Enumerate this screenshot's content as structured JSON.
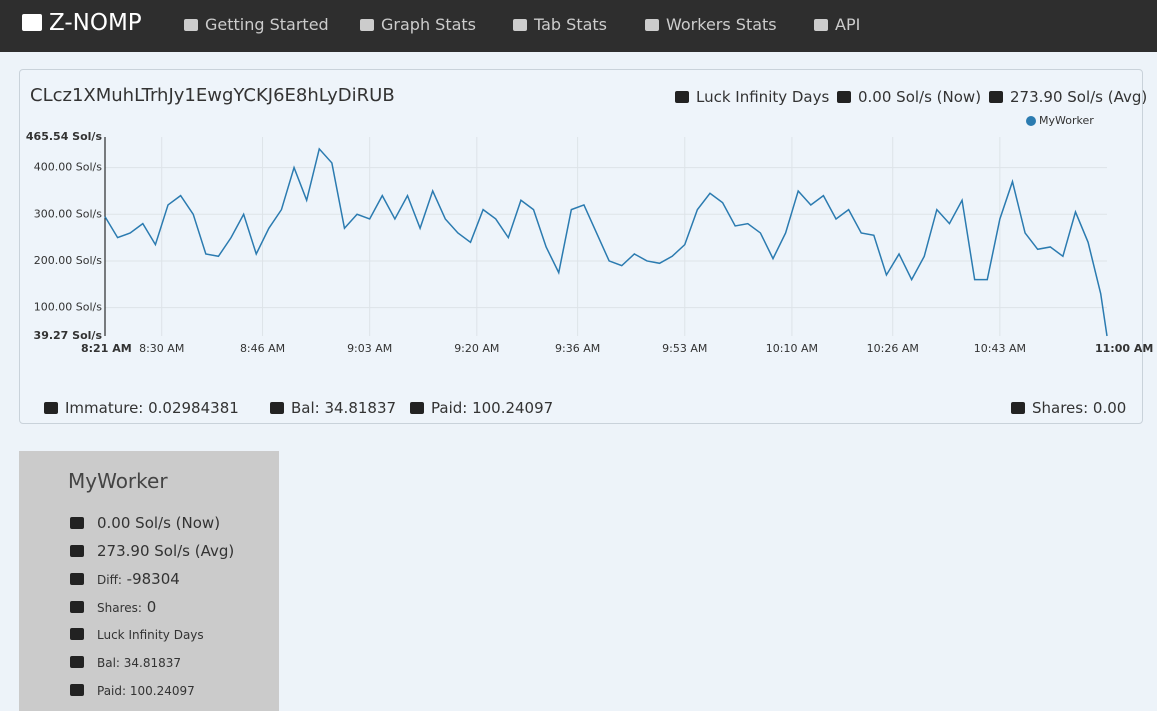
{
  "nav": {
    "brand": "Z-NOMP",
    "links": [
      "Getting Started",
      "Graph Stats",
      "Tab Stats",
      "Workers Stats",
      "API"
    ]
  },
  "header": {
    "address": "CLcz1XMuhLTrhJy1EwgYCKJ6E8hLyDiRUB",
    "luck": "Luck Infinity Days",
    "now": "0.00 Sol/s (Now)",
    "avg": "273.90 Sol/s (Avg)"
  },
  "chart_data": {
    "type": "line",
    "x": [
      501,
      503,
      505,
      507,
      509,
      511,
      513,
      515,
      517,
      519,
      521,
      523,
      525,
      527,
      529,
      531,
      533,
      535,
      537,
      539,
      541,
      543,
      545,
      547,
      549,
      551,
      553,
      555,
      557,
      559,
      561,
      563,
      565,
      567,
      569,
      571,
      573,
      575,
      577,
      579,
      581,
      583,
      585,
      587,
      589,
      591,
      593,
      595,
      597,
      599,
      601,
      603,
      605,
      607,
      609,
      611,
      613,
      615,
      617,
      619,
      621,
      623,
      625,
      627,
      629,
      631,
      633,
      635,
      637,
      639,
      641,
      643,
      645,
      647,
      649,
      651,
      653,
      655,
      657,
      659,
      660
    ],
    "series": [
      {
        "name": "MyWorker",
        "color": "#2b7bb0",
        "values": [
          295,
          250,
          260,
          280,
          235,
          320,
          340,
          300,
          215,
          210,
          250,
          300,
          215,
          270,
          310,
          400,
          330,
          440,
          410,
          270,
          300,
          290,
          340,
          290,
          340,
          270,
          350,
          290,
          260,
          240,
          310,
          290,
          250,
          330,
          310,
          230,
          175,
          310,
          320,
          260,
          200,
          190,
          215,
          200,
          195,
          210,
          235,
          310,
          345,
          325,
          275,
          280,
          260,
          205,
          260,
          350,
          320,
          340,
          290,
          310,
          260,
          255,
          170,
          215,
          160,
          210,
          310,
          280,
          330,
          160,
          160,
          290,
          370,
          260,
          225,
          230,
          210,
          305,
          240,
          130,
          39.27
        ]
      }
    ],
    "xlim": [
      501,
      660
    ],
    "xticks": [
      {
        "value": 501,
        "label": "8:21 AM"
      },
      {
        "value": 510,
        "label": "8:30 AM"
      },
      {
        "value": 526,
        "label": "8:46 AM"
      },
      {
        "value": 543,
        "label": "9:03 AM"
      },
      {
        "value": 560,
        "label": "9:20 AM"
      },
      {
        "value": 576,
        "label": "9:36 AM"
      },
      {
        "value": 593,
        "label": "9:53 AM"
      },
      {
        "value": 610,
        "label": "10:10 AM"
      },
      {
        "value": 626,
        "label": "10:26 AM"
      },
      {
        "value": 643,
        "label": "10:43 AM"
      },
      {
        "value": 660,
        "label": "11:00 AM"
      }
    ],
    "ylim": [
      39.27,
      465.54
    ],
    "yticks": [
      {
        "value": 39.27,
        "label": "39.27 Sol/s"
      },
      {
        "value": 100,
        "label": "100.00 Sol/s"
      },
      {
        "value": 200,
        "label": "200.00 Sol/s"
      },
      {
        "value": 300,
        "label": "300.00 Sol/s"
      },
      {
        "value": 400,
        "label": "400.00 Sol/s"
      },
      {
        "value": 465.54,
        "label": "465.54 Sol/s"
      }
    ],
    "grid": true,
    "legend": "top-right"
  },
  "footer": {
    "immature": "Immature: 0.02984381",
    "bal": "Bal: 34.81837",
    "paid": "Paid: 100.24097",
    "shares": "Shares: 0.00"
  },
  "worker": {
    "name": "MyWorker",
    "now": "0.00 Sol/s (Now)",
    "avg": "273.90 Sol/s (Avg)",
    "diff_label": "Diff:",
    "diff": "-98304",
    "shares_label": "Shares:",
    "shares": "0",
    "luck": "Luck Infinity Days",
    "bal": "Bal: 34.81837",
    "paid": "Paid: 100.24097"
  }
}
